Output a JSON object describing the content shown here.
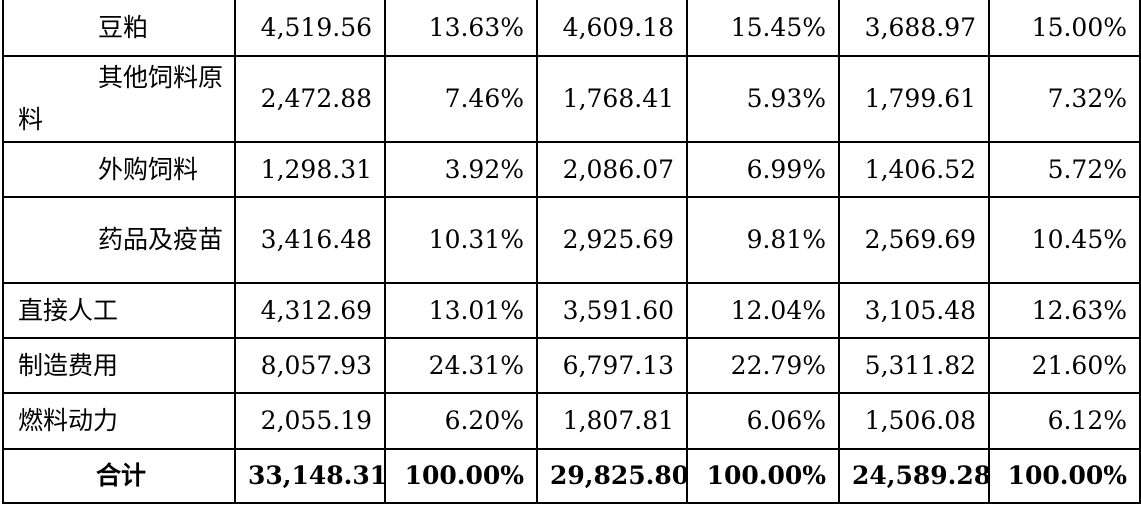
{
  "rows": [
    {
      "label": "豆粕",
      "v1": "4,519.56",
      "p1": "13.63%",
      "v2": "4,609.18",
      "p2": "15.45%",
      "v3": "3,688.97",
      "p3": "15.00%"
    },
    {
      "label": "其他饲料原料",
      "v1": "2,472.88",
      "p1": "7.46%",
      "v2": "1,768.41",
      "p2": "5.93%",
      "v3": "1,799.61",
      "p3": "7.32%"
    },
    {
      "label": "外购饲料",
      "v1": "1,298.31",
      "p1": "3.92%",
      "v2": "2,086.07",
      "p2": "6.99%",
      "v3": "1,406.52",
      "p3": "5.72%"
    },
    {
      "label": "药品及疫苗",
      "v1": "3,416.48",
      "p1": "10.31%",
      "v2": "2,925.69",
      "p2": "9.81%",
      "v3": "2,569.69",
      "p3": "10.45%"
    },
    {
      "label": "直接人工",
      "v1": "4,312.69",
      "p1": "13.01%",
      "v2": "3,591.60",
      "p2": "12.04%",
      "v3": "3,105.48",
      "p3": "12.63%"
    },
    {
      "label": "制造费用",
      "v1": "8,057.93",
      "p1": "24.31%",
      "v2": "6,797.13",
      "p2": "22.79%",
      "v3": "5,311.82",
      "p3": "21.60%"
    },
    {
      "label": "燃料动力",
      "v1": "2,055.19",
      "p1": "6.20%",
      "v2": "1,807.81",
      "p2": "6.06%",
      "v3": "1,506.08",
      "p3": "6.12%"
    }
  ],
  "total": {
    "label": "合计",
    "v1": "33,148.31",
    "p1": "100.00%",
    "v2": "29,825.80",
    "p2": "100.00%",
    "v3": "24,589.28",
    "p3": "100.00%"
  }
}
